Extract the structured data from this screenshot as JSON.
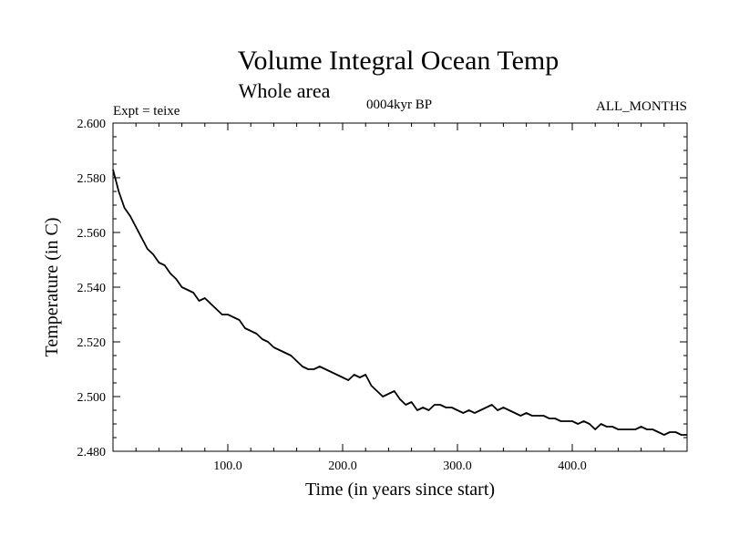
{
  "chart_data": {
    "type": "line",
    "title": "Volume Integral Ocean Temp",
    "subtitle": "Whole area",
    "experiment_label": "Expt = teixe",
    "period_label": "0004kyr BP",
    "months_label": "ALL_MONTHS",
    "xlabel": "Time (in years since start)",
    "ylabel": "Temperature (in C)",
    "xlim": [
      0,
      500
    ],
    "ylim": [
      2.48,
      2.6
    ],
    "x_ticks": [
      100,
      200,
      300,
      400
    ],
    "x_tick_labels": [
      "100.0",
      "200.0",
      "300.0",
      "400.0"
    ],
    "y_ticks": [
      2.48,
      2.5,
      2.52,
      2.54,
      2.56,
      2.58,
      2.6
    ],
    "y_tick_labels": [
      "2.480",
      "2.500",
      "2.520",
      "2.540",
      "2.560",
      "2.580",
      "2.600"
    ],
    "grid": false,
    "line_color": "#000000",
    "series": [
      {
        "x": [
          0,
          5,
          10,
          15,
          20,
          25,
          30,
          35,
          40,
          45,
          50,
          55,
          60,
          65,
          70,
          75,
          80,
          85,
          90,
          95,
          100,
          105,
          110,
          115,
          120,
          125,
          130,
          135,
          140,
          145,
          150,
          155,
          160,
          165,
          170,
          175,
          180,
          185,
          190,
          195,
          200,
          205,
          210,
          215,
          220,
          225,
          230,
          235,
          240,
          245,
          250,
          255,
          260,
          265,
          270,
          275,
          280,
          285,
          290,
          295,
          300,
          305,
          310,
          315,
          320,
          325,
          330,
          335,
          340,
          345,
          350,
          355,
          360,
          365,
          370,
          375,
          380,
          385,
          390,
          395,
          400,
          405,
          410,
          415,
          420,
          425,
          430,
          435,
          440,
          445,
          450,
          455,
          460,
          465,
          470,
          475,
          480,
          485,
          490,
          495,
          500
        ],
        "values": [
          2.583,
          2.575,
          2.569,
          2.566,
          2.562,
          2.558,
          2.554,
          2.552,
          2.549,
          2.548,
          2.545,
          2.543,
          2.54,
          2.539,
          2.538,
          2.535,
          2.536,
          2.534,
          2.532,
          2.53,
          2.53,
          2.529,
          2.528,
          2.525,
          2.524,
          2.523,
          2.521,
          2.52,
          2.518,
          2.517,
          2.516,
          2.515,
          2.513,
          2.511,
          2.51,
          2.51,
          2.511,
          2.51,
          2.509,
          2.508,
          2.507,
          2.506,
          2.508,
          2.507,
          2.508,
          2.504,
          2.502,
          2.5,
          2.501,
          2.502,
          2.499,
          2.497,
          2.498,
          2.495,
          2.496,
          2.495,
          2.497,
          2.497,
          2.496,
          2.496,
          2.495,
          2.494,
          2.495,
          2.494,
          2.495,
          2.496,
          2.497,
          2.495,
          2.496,
          2.495,
          2.494,
          2.493,
          2.494,
          2.493,
          2.493,
          2.493,
          2.492,
          2.492,
          2.491,
          2.491,
          2.491,
          2.49,
          2.491,
          2.49,
          2.488,
          2.49,
          2.489,
          2.489,
          2.488,
          2.488,
          2.488,
          2.488,
          2.489,
          2.488,
          2.488,
          2.487,
          2.486,
          2.487,
          2.487,
          2.486,
          2.486
        ]
      }
    ]
  }
}
